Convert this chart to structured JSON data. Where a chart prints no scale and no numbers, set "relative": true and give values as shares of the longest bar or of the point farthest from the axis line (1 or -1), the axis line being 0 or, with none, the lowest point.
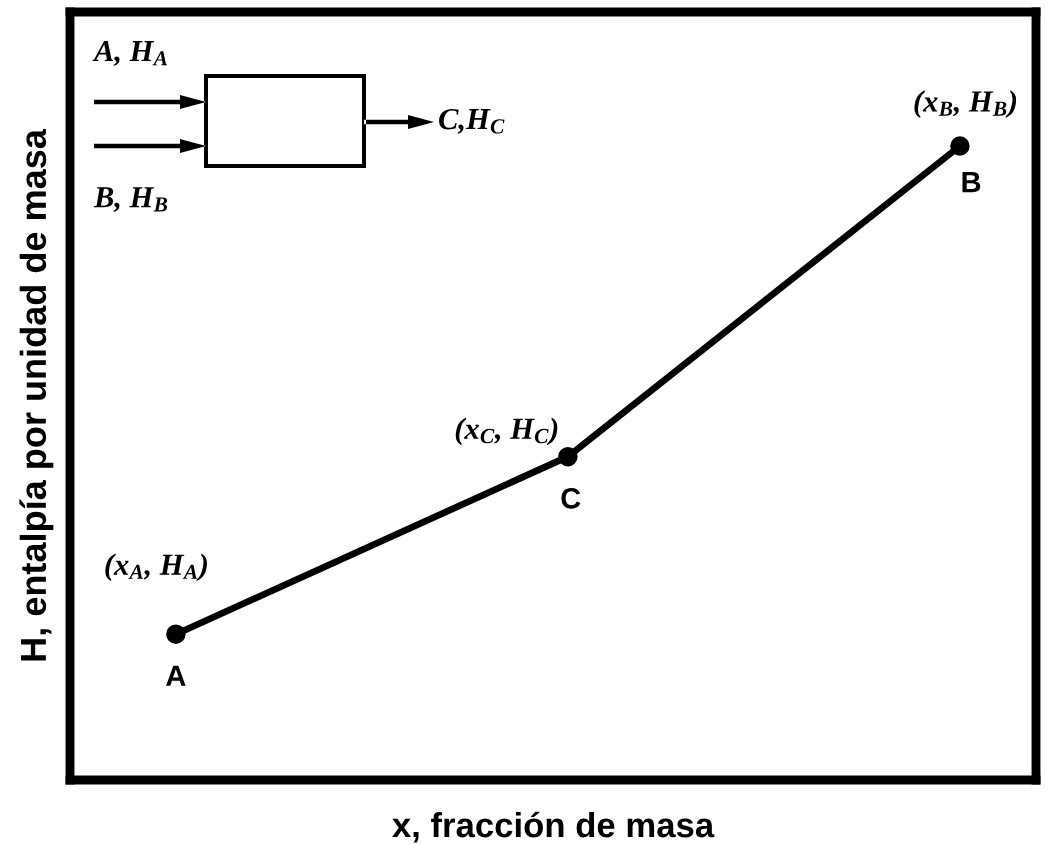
{
  "chart_data": {
    "type": "line",
    "relative": true,
    "xlabel": "x, fracción de masa",
    "ylabel": "H, entalpía por unidad de masa",
    "categories": [
      null,
      null,
      null
    ],
    "series": [
      {
        "color": "#000000",
        "values": [
          0.23,
          0.51,
          1
        ]
      }
    ],
    "marker": "circle",
    "line_style": "solid",
    "annotations": [
      "(x$_{A}$, H$_{A}$)",
      {
        "text": "A",
        "y": 0.23
      },
      "(x$_{C}$, H$_{C}$)",
      {
        "text": "C",
        "y": 0.51
      },
      "(x$_{B}$, H$_{B}$)",
      {
        "text": "B",
        "y": 1
      },
      "A, H$_{A}$",
      "B, H$_{B}$",
      "C,H$_{C}$"
    ]
  }
}
